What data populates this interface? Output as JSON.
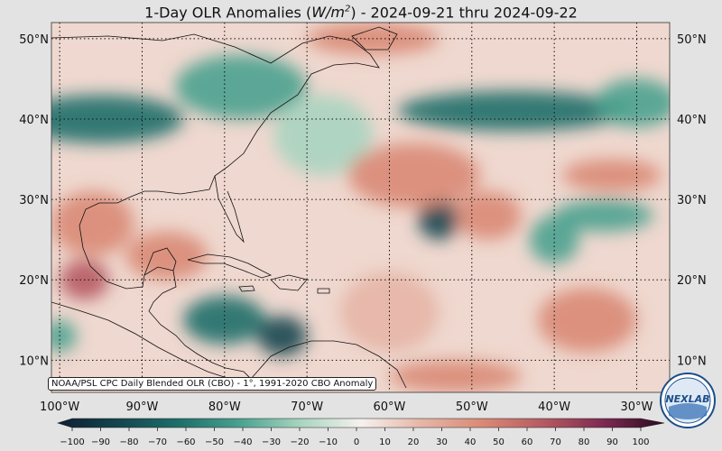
{
  "title": {
    "prefix": "1-Day OLR Anomalies (",
    "unit_base": "W/m",
    "unit_exp": "2",
    "suffix": ") - 2024-09-21 thru 2024-09-22"
  },
  "credit": "NOAA/PSL CPC Daily Blended OLR (CBO) - 1°, 1991-2020 CBO Anomaly",
  "logo_text": "NEXLAB",
  "map": {
    "lon_range": [
      -101,
      -26
    ],
    "lat_range": [
      6,
      52
    ],
    "lat_ticks": [
      {
        "value": 50,
        "label": "50°N"
      },
      {
        "value": 40,
        "label": "40°N"
      },
      {
        "value": 30,
        "label": "30°N"
      },
      {
        "value": 20,
        "label": "20°N"
      },
      {
        "value": 10,
        "label": "10°N"
      }
    ],
    "lon_ticks": [
      {
        "value": -100,
        "label": "100°W"
      },
      {
        "value": -90,
        "label": "90°W"
      },
      {
        "value": -80,
        "label": "80°W"
      },
      {
        "value": -70,
        "label": "70°W"
      },
      {
        "value": -60,
        "label": "60°W"
      },
      {
        "value": -50,
        "label": "50°W"
      },
      {
        "value": -40,
        "label": "40°W"
      },
      {
        "value": -30,
        "label": "30°W"
      }
    ],
    "anomaly_features": [
      {
        "lon": -95,
        "lat": 40,
        "value": -60,
        "rx": 10,
        "ry": 3
      },
      {
        "lon": -78,
        "lat": 44,
        "value": -45,
        "rx": 8,
        "ry": 4
      },
      {
        "lon": -45,
        "lat": 41,
        "value": -55,
        "rx": 14,
        "ry": 2.5
      },
      {
        "lon": -30,
        "lat": 42,
        "value": -50,
        "rx": 5,
        "ry": 3
      },
      {
        "lon": -54,
        "lat": 27.5,
        "value": -75,
        "rx": 2.5,
        "ry": 2.5
      },
      {
        "lon": -80,
        "lat": 15,
        "value": -65,
        "rx": 5,
        "ry": 3
      },
      {
        "lon": -73,
        "lat": 13,
        "value": -80,
        "rx": 3,
        "ry": 2.5
      },
      {
        "lon": -100,
        "lat": 13,
        "value": -50,
        "rx": 2,
        "ry": 2
      },
      {
        "lon": -34,
        "lat": 28,
        "value": -45,
        "rx": 6,
        "ry": 2
      },
      {
        "lon": -40,
        "lat": 25,
        "value": -35,
        "rx": 3,
        "ry": 3
      },
      {
        "lon": -68,
        "lat": 38,
        "value": -30,
        "rx": 6,
        "ry": 5
      },
      {
        "lon": -96,
        "lat": 27,
        "value": 40,
        "rx": 5,
        "ry": 4
      },
      {
        "lon": -97,
        "lat": 20,
        "value": 65,
        "rx": 3,
        "ry": 2.5
      },
      {
        "lon": -87,
        "lat": 23,
        "value": 45,
        "rx": 5,
        "ry": 3
      },
      {
        "lon": -57,
        "lat": 33,
        "value": 35,
        "rx": 8,
        "ry": 4
      },
      {
        "lon": -48,
        "lat": 28,
        "value": 45,
        "rx": 4,
        "ry": 3
      },
      {
        "lon": -36,
        "lat": 15,
        "value": 35,
        "rx": 6,
        "ry": 4
      },
      {
        "lon": -52,
        "lat": 8,
        "value": 40,
        "rx": 8,
        "ry": 2
      },
      {
        "lon": -60,
        "lat": 16,
        "value": 25,
        "rx": 6,
        "ry": 5
      },
      {
        "lon": -62,
        "lat": 50,
        "value": 30,
        "rx": 8,
        "ry": 2
      },
      {
        "lon": -33,
        "lat": 33,
        "value": 30,
        "rx": 6,
        "ry": 2
      }
    ]
  },
  "colorbar": {
    "ticks": [
      -100,
      -90,
      -80,
      -70,
      -60,
      -50,
      -40,
      -30,
      -20,
      -10,
      0,
      10,
      20,
      30,
      40,
      50,
      60,
      70,
      80,
      90,
      100
    ],
    "tick_labels": [
      "−100",
      "−90",
      "−80",
      "−70",
      "−60",
      "−50",
      "−40",
      "−30",
      "−20",
      "−10",
      "0",
      "10",
      "20",
      "30",
      "40",
      "50",
      "60",
      "70",
      "80",
      "90",
      "100"
    ],
    "stops": [
      {
        "value": -100,
        "color": "#0d1f33"
      },
      {
        "value": -80,
        "color": "#14454f"
      },
      {
        "value": -60,
        "color": "#1d6f6a"
      },
      {
        "value": -40,
        "color": "#4aa18f"
      },
      {
        "value": -20,
        "color": "#a8d4c0"
      },
      {
        "value": 0,
        "color": "#f6f1ee"
      },
      {
        "value": 20,
        "color": "#e6b5a6"
      },
      {
        "value": 40,
        "color": "#d98a76"
      },
      {
        "value": 60,
        "color": "#b65a62"
      },
      {
        "value": 80,
        "color": "#7d2a52"
      },
      {
        "value": 100,
        "color": "#2b0a1e"
      }
    ]
  }
}
